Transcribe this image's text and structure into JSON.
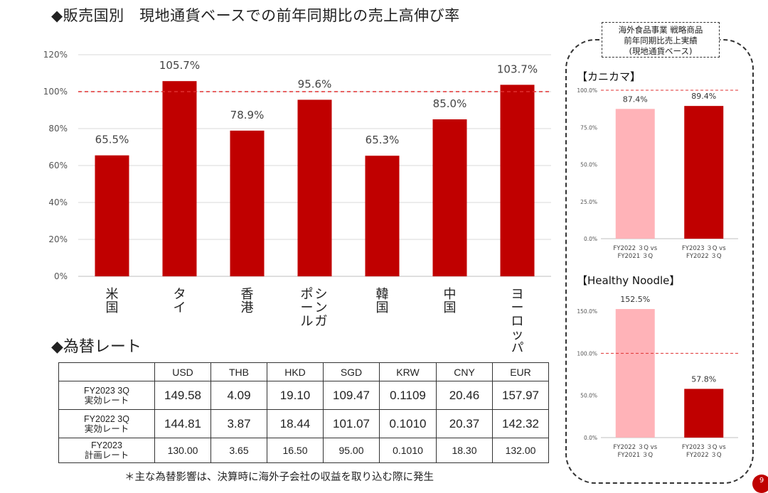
{
  "title": "◆販売国別　現地通貨ベースでの前年同期比の売上高伸び率",
  "chart_data": [
    {
      "type": "bar",
      "categories": [
        "米国",
        "タイ",
        "香港",
        "シンガポール",
        "韓国",
        "中国",
        "ヨーロッパ"
      ],
      "category_lines": [
        [
          "米",
          "国"
        ],
        [
          "タ",
          "イ"
        ],
        [
          "香",
          "港"
        ],
        [
          "シンガ",
          "ポール"
        ],
        [
          "韓",
          "国"
        ],
        [
          "中",
          "国"
        ],
        [
          "ヨ",
          "ー",
          "ロ",
          "ッ",
          "パ"
        ]
      ],
      "values": [
        65.5,
        105.7,
        78.9,
        95.6,
        65.3,
        85.0,
        103.7
      ],
      "value_labels": [
        "65.5%",
        "105.7%",
        "78.9%",
        "95.6%",
        "65.3%",
        "85.0%",
        "103.7%"
      ],
      "yticks": [
        "0%",
        "20%",
        "40%",
        "60%",
        "80%",
        "100%",
        "120%"
      ],
      "ylim": [
        0,
        120
      ],
      "reference_line": 100,
      "bar_color": "#c00000",
      "ref_color": "#e03030"
    },
    {
      "type": "bar",
      "title": "【カニカマ】",
      "categories": [
        "FY2022 3Q vs FY2021 3Q",
        "FY2023 3Q vs FY2022 3Q"
      ],
      "category_lines": [
        [
          "FY2022 ３Q vs",
          "FY2021 ３Q"
        ],
        [
          "FY2023 ３Q vs",
          "FY2022 ３Q"
        ]
      ],
      "values": [
        87.4,
        89.4
      ],
      "value_labels": [
        "87.4%",
        "89.4%"
      ],
      "yticks": [
        "0.0%",
        "25.0%",
        "50.0%",
        "75.0%",
        "100.0%"
      ],
      "ylim": [
        0,
        100
      ],
      "reference_line": 100,
      "bar_colors": [
        "#ffb3b8",
        "#c00000"
      ]
    },
    {
      "type": "bar",
      "title": "【Healthy Noodle】",
      "categories": [
        "FY2022 3Q vs FY2021 3Q",
        "FY2023 3Q vs FY2022 3Q"
      ],
      "category_lines": [
        [
          "FY2022 ３Q vs",
          "FY2021 ３Q"
        ],
        [
          "FY2023 ３Q vs",
          "FY2022 ３Q"
        ]
      ],
      "values": [
        152.5,
        57.8
      ],
      "value_labels": [
        "152.5%",
        "57.8%"
      ],
      "yticks": [
        "0.0%",
        "50.0%",
        "100.0%",
        "150.0%"
      ],
      "ylim": [
        0,
        150
      ],
      "reference_line": 100,
      "bar_colors": [
        "#ffb3b8",
        "#c00000"
      ]
    }
  ],
  "fx": {
    "title": "◆為替レート",
    "headers": [
      "",
      "USD",
      "THB",
      "HKD",
      "SGD",
      "KRW",
      "CNY",
      "EUR"
    ],
    "rows": [
      {
        "label": [
          "FY2023 3Q",
          "実効レート"
        ],
        "values": [
          "149.58",
          "4.09",
          "19.10",
          "109.47",
          "0.1109",
          "20.46",
          "157.97"
        ]
      },
      {
        "label": [
          "FY2022 3Q",
          "実効レート"
        ],
        "values": [
          "144.81",
          "3.87",
          "18.44",
          "101.07",
          "0.1010",
          "20.37",
          "142.32"
        ]
      },
      {
        "label": [
          "FY2023",
          "計画レート"
        ],
        "values": [
          "130.00",
          "3.65",
          "16.50",
          "95.00",
          "0.1010",
          "18.30",
          "132.00"
        ]
      }
    ],
    "note": "＊主な為替影響は、決算時に海外子会社の収益を取り込む際に発生"
  },
  "side": {
    "heading": [
      "海外食品事業 戦略商品",
      "前年同期比売上実績",
      "(現地通貨ベース)"
    ]
  },
  "page_number": "9"
}
